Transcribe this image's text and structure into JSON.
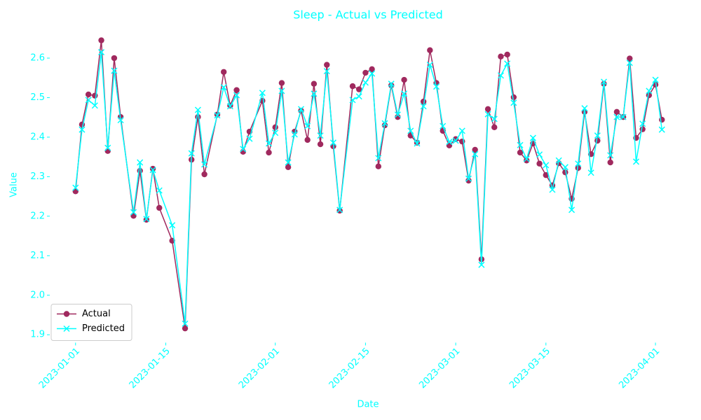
{
  "chart_data": {
    "type": "line",
    "title": "Sleep - Actual vs Predicted",
    "x_label": "Date",
    "y_label": "Value",
    "x": [
      "2023-01-01",
      "2023-01-02",
      "2023-01-03",
      "2023-01-04",
      "2023-01-05",
      "2023-01-06",
      "2023-01-07",
      "2023-01-08",
      "2023-01-10",
      "2023-01-11",
      "2023-01-12",
      "2023-01-13",
      "2023-01-14",
      "2023-01-16",
      "2023-01-18",
      "2023-01-19",
      "2023-01-20",
      "2023-01-21",
      "2023-01-23",
      "2023-01-24",
      "2023-01-25",
      "2023-01-26",
      "2023-01-27",
      "2023-01-28",
      "2023-01-30",
      "2023-01-31",
      "2023-02-01",
      "2023-02-02",
      "2023-02-03",
      "2023-02-04",
      "2023-02-05",
      "2023-02-06",
      "2023-02-07",
      "2023-02-08",
      "2023-02-09",
      "2023-02-10",
      "2023-02-11",
      "2023-02-13",
      "2023-02-14",
      "2023-02-15",
      "2023-02-16",
      "2023-02-17",
      "2023-02-18",
      "2023-02-19",
      "2023-02-20",
      "2023-02-21",
      "2023-02-22",
      "2023-02-23",
      "2023-02-24",
      "2023-02-25",
      "2023-02-26",
      "2023-02-27",
      "2023-02-28",
      "2023-03-01",
      "2023-03-02",
      "2023-03-03",
      "2023-03-04",
      "2023-03-05",
      "2023-03-06",
      "2023-03-07",
      "2023-03-08",
      "2023-03-09",
      "2023-03-10",
      "2023-03-11",
      "2023-03-12",
      "2023-03-13",
      "2023-03-14",
      "2023-03-15",
      "2023-03-16",
      "2023-03-17",
      "2023-03-18",
      "2023-03-19",
      "2023-03-20",
      "2023-03-21",
      "2023-03-22",
      "2023-03-23",
      "2023-03-24",
      "2023-03-25",
      "2023-03-26",
      "2023-03-27",
      "2023-03-28",
      "2023-03-29",
      "2023-03-30",
      "2023-03-31",
      "2023-04-01",
      "2023-04-02"
    ],
    "series": [
      {
        "name": "Actual",
        "color": "#a0295e",
        "marker": "circle",
        "values": [
          2.263,
          2.432,
          2.508,
          2.505,
          2.645,
          2.365,
          2.6,
          2.451,
          2.201,
          2.315,
          2.191,
          2.32,
          2.221,
          2.138,
          1.916,
          2.343,
          2.451,
          2.306,
          2.457,
          2.565,
          2.48,
          2.519,
          2.363,
          2.414,
          2.492,
          2.361,
          2.425,
          2.537,
          2.324,
          2.414,
          2.467,
          2.393,
          2.535,
          2.382,
          2.583,
          2.377,
          2.214,
          2.529,
          2.521,
          2.563,
          2.572,
          2.326,
          2.43,
          2.531,
          2.451,
          2.545,
          2.404,
          2.386,
          2.49,
          2.62,
          2.537,
          2.416,
          2.379,
          2.395,
          2.389,
          2.29,
          2.368,
          2.091,
          2.471,
          2.425,
          2.604,
          2.609,
          2.501,
          2.361,
          2.341,
          2.384,
          2.333,
          2.304,
          2.278,
          2.334,
          2.311,
          2.244,
          2.322,
          2.464,
          2.357,
          2.391,
          2.535,
          2.336,
          2.464,
          2.451,
          2.599,
          2.398,
          2.42,
          2.506,
          2.533,
          2.444
        ]
      },
      {
        "name": "Predicted",
        "color": "#00ffff",
        "marker": "x",
        "values": [
          2.272,
          2.419,
          2.494,
          2.48,
          2.615,
          2.373,
          2.568,
          2.443,
          2.21,
          2.336,
          2.193,
          2.317,
          2.265,
          2.177,
          1.928,
          2.359,
          2.469,
          2.331,
          2.455,
          2.526,
          2.478,
          2.506,
          2.37,
          2.396,
          2.512,
          2.384,
          2.411,
          2.517,
          2.336,
          2.407,
          2.471,
          2.428,
          2.51,
          2.404,
          2.567,
          2.386,
          2.216,
          2.494,
          2.503,
          2.538,
          2.561,
          2.347,
          2.435,
          2.535,
          2.457,
          2.51,
          2.416,
          2.384,
          2.478,
          2.583,
          2.528,
          2.428,
          2.388,
          2.391,
          2.416,
          2.295,
          2.357,
          2.077,
          2.458,
          2.446,
          2.556,
          2.586,
          2.487,
          2.38,
          2.345,
          2.398,
          2.356,
          2.329,
          2.267,
          2.341,
          2.324,
          2.216,
          2.333,
          2.473,
          2.31,
          2.404,
          2.54,
          2.354,
          2.451,
          2.451,
          2.588,
          2.338,
          2.434,
          2.517,
          2.545,
          2.419
        ]
      }
    ],
    "xlim": [
      "2022-12-28",
      "2023-04-06"
    ],
    "xticks": [
      "2023-01-01",
      "2023-01-15",
      "2023-02-01",
      "2023-02-15",
      "2023-03-01",
      "2023-03-15",
      "2023-04-01"
    ],
    "ylim": [
      1.88,
      2.67
    ],
    "yticks": [
      1.9,
      {
        "value": 2,
        "label": "2.0"
      },
      2.1,
      2.2,
      2.3,
      2.4,
      2.5,
      2.6
    ],
    "legend": "lower left"
  }
}
